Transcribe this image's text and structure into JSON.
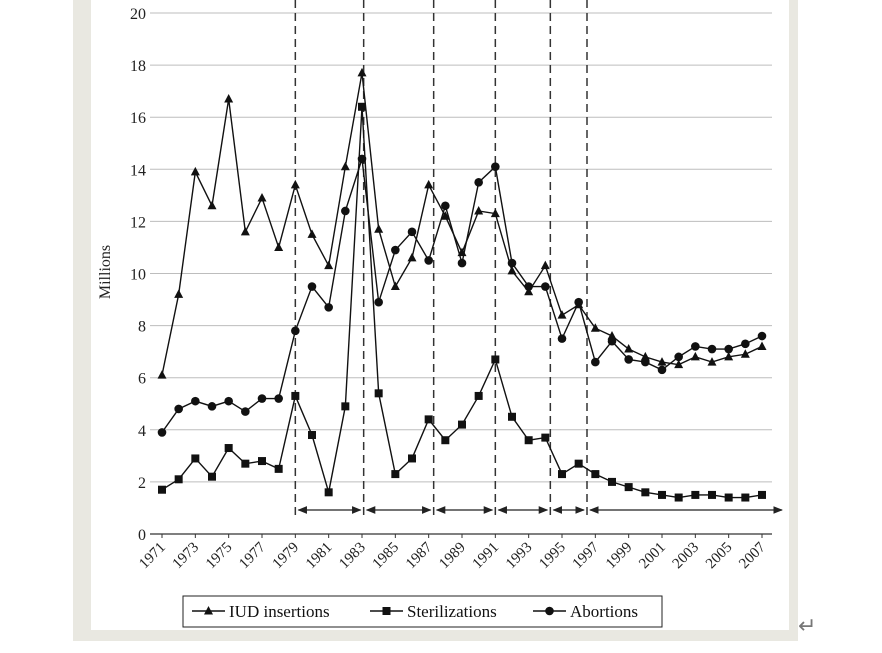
{
  "chart_data": {
    "type": "line",
    "ylabel": "Millions",
    "xlabel": "",
    "ylim": [
      0,
      20
    ],
    "yticks": [
      0,
      2,
      4,
      6,
      8,
      10,
      12,
      14,
      16,
      18,
      20
    ],
    "xlim": [
      1971,
      2007
    ],
    "xtick_labels": [
      "1971",
      "1973",
      "1975",
      "1977",
      "1979",
      "1981",
      "1983",
      "1985",
      "1987",
      "1989",
      "1991",
      "1993",
      "1995",
      "1997",
      "1999",
      "2001",
      "2003",
      "2005",
      "2007"
    ],
    "x": [
      1971,
      1972,
      1973,
      1974,
      1975,
      1976,
      1977,
      1978,
      1979,
      1980,
      1981,
      1982,
      1983,
      1984,
      1985,
      1986,
      1987,
      1988,
      1989,
      1990,
      1991,
      1992,
      1993,
      1994,
      1995,
      1996,
      1997,
      1998,
      1999,
      2000,
      2001,
      2002,
      2003,
      2004,
      2005,
      2006,
      2007
    ],
    "series": [
      {
        "name": "IUD insertions",
        "marker": "triangle",
        "values": [
          6.1,
          9.2,
          13.9,
          12.6,
          16.7,
          11.6,
          12.9,
          11.0,
          13.4,
          11.5,
          10.3,
          14.1,
          17.7,
          11.7,
          9.5,
          10.6,
          13.4,
          12.2,
          10.8,
          12.4,
          12.3,
          10.1,
          9.3,
          10.3,
          8.4,
          8.8,
          7.9,
          7.6,
          7.1,
          6.8,
          6.6,
          6.5,
          6.8,
          6.6,
          6.8,
          6.9,
          7.2
        ]
      },
      {
        "name": "Sterilizations",
        "marker": "square",
        "values": [
          1.7,
          2.1,
          2.9,
          2.2,
          3.3,
          2.7,
          2.8,
          2.5,
          5.3,
          3.8,
          1.6,
          4.9,
          16.4,
          5.4,
          2.3,
          2.9,
          4.4,
          3.6,
          4.2,
          5.3,
          6.7,
          4.5,
          3.6,
          3.7,
          2.3,
          2.7,
          2.3,
          2.0,
          1.8,
          1.6,
          1.5,
          1.4,
          1.5,
          1.5,
          1.4,
          1.4,
          1.5
        ]
      },
      {
        "name": "Abortions",
        "marker": "circle",
        "values": [
          3.9,
          4.8,
          5.1,
          4.9,
          5.1,
          4.7,
          5.2,
          5.2,
          7.8,
          9.5,
          8.7,
          12.4,
          14.4,
          8.9,
          10.9,
          11.6,
          10.5,
          12.6,
          10.4,
          13.5,
          14.1,
          10.4,
          9.5,
          9.5,
          7.5,
          8.9,
          6.6,
          7.4,
          6.7,
          6.6,
          6.3,
          6.8,
          7.2,
          7.1,
          7.1,
          7.3,
          7.6
        ]
      }
    ],
    "period_boundaries": [
      1979.0,
      1983.1,
      1987.3,
      1991.0,
      1994.3,
      1996.5
    ],
    "legend_position": "bottom",
    "grid": "horizontal"
  },
  "decor": {
    "return_glyph": "↵"
  }
}
